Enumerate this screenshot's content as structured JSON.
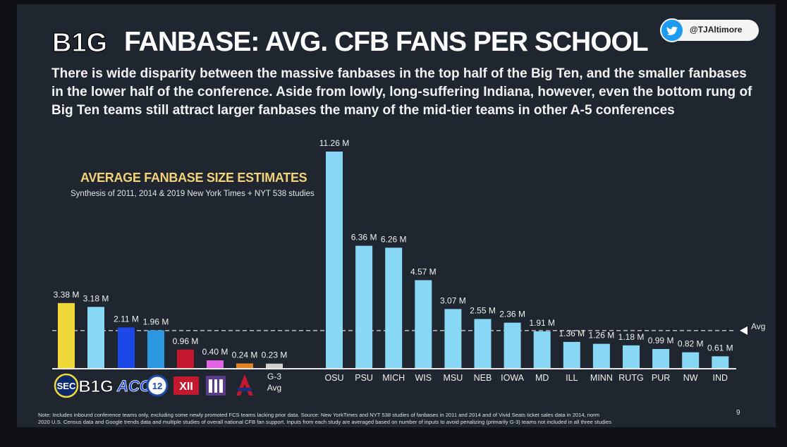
{
  "header": {
    "logo_text": "B1G",
    "title": "FANBASE:  AVG. CFB FANS PER SCHOOL",
    "subtitle": "There is wide disparity between the massive fanbases in the top half of the Big Ten, and the smaller fanbases in the lower half of the conference.  Aside from lowly, long-suffering Indiana, however, even the bottom rung of Big Ten teams still attract larger fanbases the many of the mid-tier teams in other A-5 conferences",
    "twitter_handle": "@TJAltimore"
  },
  "chart_heading": "AVERAGE FANBASE SIZE ESTIMATES",
  "chart_subheading": "Synthesis of 2011, 2014 & 2019 New York Times + NYT 538 studies",
  "chart_data": {
    "type": "bar",
    "avg_label": "Avg",
    "avg_value": 1.95,
    "ylim": [
      0,
      11.5
    ],
    "conference_bars": [
      {
        "label": "SEC",
        "value": 3.38,
        "value_label": "3.38 M",
        "color": "#f0d83a"
      },
      {
        "label": "B1G",
        "value": 3.18,
        "value_label": "3.18 M",
        "color": "#87d7f5"
      },
      {
        "label": "ACC",
        "value": 2.11,
        "value_label": "2.11 M",
        "color": "#1c48e8"
      },
      {
        "label": "PAC-12",
        "value": 1.96,
        "value_label": "1.96 M",
        "color": "#2a97de"
      },
      {
        "label": "BIG XII",
        "value": 0.96,
        "value_label": "0.96 M",
        "color": "#c4182f"
      },
      {
        "label": "MWC",
        "value": 0.4,
        "value_label": "0.40 M",
        "color": "#e163e6"
      },
      {
        "label": "AAC",
        "value": 0.24,
        "value_label": "0.24 M",
        "color": "#e08225"
      },
      {
        "label": "G-3 Avg",
        "value": 0.23,
        "value_label": "0.23 M",
        "color": "#cfcfcf"
      }
    ],
    "g3_label_line1": "G-3",
    "g3_label_line2": "Avg",
    "team_bars": [
      {
        "label": "OSU",
        "value": 11.26,
        "value_label": "11.26 M"
      },
      {
        "label": "PSU",
        "value": 6.36,
        "value_label": "6.36 M"
      },
      {
        "label": "MICH",
        "value": 6.26,
        "value_label": "6.26 M"
      },
      {
        "label": "WIS",
        "value": 4.57,
        "value_label": "4.57 M"
      },
      {
        "label": "MSU",
        "value": 3.07,
        "value_label": "3.07 M"
      },
      {
        "label": "NEB",
        "value": 2.55,
        "value_label": "2.55 M"
      },
      {
        "label": "IOWA",
        "value": 2.36,
        "value_label": "2.36 M"
      },
      {
        "label": "MD",
        "value": 1.91,
        "value_label": "1.91 M"
      },
      {
        "label": "ILL",
        "value": 1.36,
        "value_label": "1.36 M"
      },
      {
        "label": "MINN",
        "value": 1.26,
        "value_label": "1.26 M"
      },
      {
        "label": "RUTG",
        "value": 1.18,
        "value_label": "1.18 M"
      },
      {
        "label": "PUR",
        "value": 0.99,
        "value_label": "0.99 M"
      },
      {
        "label": "NW",
        "value": 0.82,
        "value_label": "0.82 M"
      },
      {
        "label": "IND",
        "value": 0.61,
        "value_label": "0.61 M"
      }
    ],
    "team_color": "#87d7f5",
    "grid": false
  },
  "footer": {
    "note_line1": "Note:  Includes inbound conference teams only, excluding some newly promoted FCS teams lacking prior data.  Source:  New YorkTimes and NYT 538 studies of fanbases in 2011 and 2014 and of Vivid Seats ticket sales data in 2014, norm",
    "note_line2": "2020 U.S. Census data and Google trends data and multiple studies of overall national CFB fan support.  Inputs from each study are averaged based on number of inputs to avoid penalizing (primarily G-3) teams not included in all three studies",
    "page_number": "9"
  }
}
